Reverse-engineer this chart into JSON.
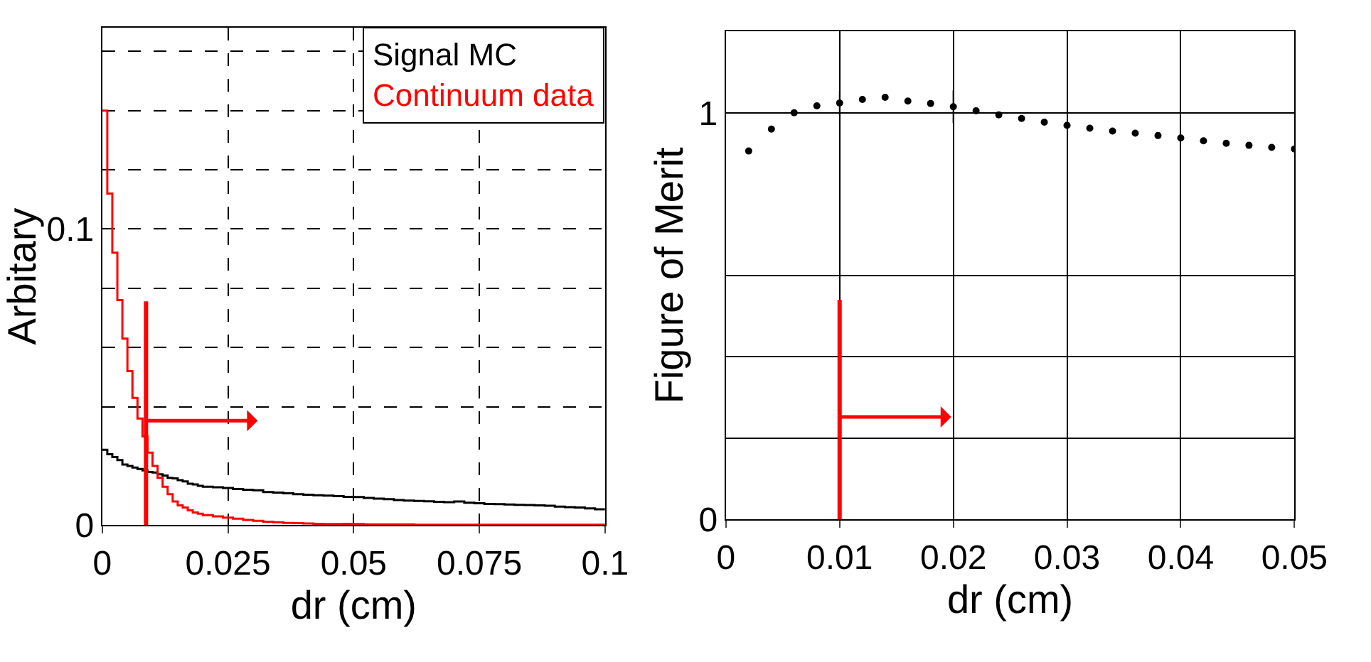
{
  "chart_data": [
    {
      "type": "histogram",
      "xlabel": "dr (cm)",
      "ylabel": "Arbitary",
      "bins": [
        0,
        0.001,
        0.002,
        0.003,
        0.004,
        0.005,
        0.006,
        0.007,
        0.008,
        0.009,
        0.01,
        0.011,
        0.012,
        0.013,
        0.014,
        0.015,
        0.016,
        0.017,
        0.018,
        0.019,
        0.02,
        0.022,
        0.024,
        0.026,
        0.028,
        0.03,
        0.032,
        0.034,
        0.036,
        0.038,
        0.04,
        0.042,
        0.044,
        0.046,
        0.048,
        0.05,
        0.052,
        0.054,
        0.056,
        0.058,
        0.06,
        0.062,
        0.064,
        0.066,
        0.068,
        0.07,
        0.072,
        0.074,
        0.076,
        0.078,
        0.08,
        0.082,
        0.084,
        0.086,
        0.088,
        0.09,
        0.092,
        0.094,
        0.096,
        0.098,
        0.1
      ],
      "series": [
        {
          "name": "Signal MC",
          "color": "#000000",
          "values": [
            0.0255,
            0.024,
            0.023,
            0.022,
            0.0205,
            0.02,
            0.0195,
            0.019,
            0.0185,
            0.018,
            0.0178,
            0.0172,
            0.0168,
            0.016,
            0.0158,
            0.0152,
            0.0148,
            0.014,
            0.0138,
            0.0133,
            0.013,
            0.0128,
            0.0126,
            0.0122,
            0.012,
            0.0118,
            0.0112,
            0.011,
            0.0108,
            0.0105,
            0.0103,
            0.0101,
            0.01,
            0.0098,
            0.0096,
            0.0095,
            0.0092,
            0.009,
            0.0088,
            0.0085,
            0.0083,
            0.0082,
            0.0081,
            0.0079,
            0.0078,
            0.008,
            0.0076,
            0.0074,
            0.0072,
            0.0071,
            0.007,
            0.0069,
            0.0068,
            0.0067,
            0.0066,
            0.0063,
            0.0061,
            0.006,
            0.0057,
            0.0054
          ]
        },
        {
          "name": "Continuum data",
          "color": "#ff0000",
          "values": [
            0.14,
            0.112,
            0.092,
            0.076,
            0.063,
            0.052,
            0.043,
            0.036,
            0.03,
            0.0245,
            0.02,
            0.016,
            0.013,
            0.0105,
            0.008,
            0.0067,
            0.006,
            0.005,
            0.0043,
            0.0039,
            0.0034,
            0.003,
            0.0026,
            0.0022,
            0.0018,
            0.0015,
            0.0012,
            0.001,
            0.0008,
            0.0007,
            0.0006,
            0.0005,
            0.0004,
            0.0004,
            0.0005,
            0.0004,
            0.0003,
            0.0003,
            0.0003,
            0.0003,
            0.0003,
            0.0002,
            0.0002,
            0.0002,
            0.0002,
            0.0002,
            0.0002,
            0.0002,
            0.0002,
            0.0002,
            0.0002,
            0.0002,
            0.0002,
            0.0002,
            0.0002,
            0.0002,
            0.0002,
            0.0002,
            0.0002,
            0.0002
          ]
        }
      ],
      "xlim": [
        0,
        0.1
      ],
      "xticks": [
        0,
        0.025,
        0.05,
        0.075,
        {
          "value": 0.1,
          "label": "0.1"
        }
      ],
      "ylim": [
        0,
        0.168
      ],
      "yticks": [
        0,
        {
          "value": 0.04,
          "label": null
        },
        {
          "value": 0.06,
          "label": null
        },
        {
          "value": 0.08,
          "label": null
        },
        0.1,
        {
          "value": 0.12,
          "label": null
        },
        {
          "value": 0.14,
          "label": null
        },
        {
          "value": 0.16,
          "label": null
        }
      ],
      "grid": true,
      "line_style": "dashed",
      "legend": "top right",
      "ref_lines": [
        {
          "axis": "x",
          "value": 0.0087,
          "color": "#ff0000"
        }
      ]
    },
    {
      "type": "scatter",
      "xlabel": "dr (cm)",
      "ylabel": "Figure of Merit",
      "x": [
        0.002,
        0.004,
        0.006,
        0.008,
        0.01,
        0.012,
        0.014,
        0.016,
        0.018,
        0.02,
        0.022,
        0.024,
        0.026,
        0.028,
        0.03,
        0.032,
        0.034,
        0.036,
        0.038,
        0.04,
        0.042,
        0.044,
        0.046,
        0.048,
        0.05
      ],
      "values": [
        0.906,
        0.96,
        1.0,
        1.017,
        1.024,
        1.033,
        1.038,
        1.029,
        1.023,
        1.015,
        1.005,
        0.995,
        0.986,
        0.977,
        0.969,
        0.962,
        0.955,
        0.95,
        0.944,
        0.938,
        0.931,
        0.925,
        0.92,
        0.915,
        0.911
      ],
      "errors": [
        null,
        null,
        null,
        null,
        0.03,
        null,
        null,
        null,
        null,
        0.04,
        null,
        null,
        null,
        null,
        null,
        null,
        null,
        null,
        null,
        null,
        null,
        null,
        null,
        null,
        null
      ],
      "color": "#000000",
      "marker": "circle",
      "xlim": [
        0,
        0.05
      ],
      "xticks": [
        0,
        0.01,
        0.02,
        0.03,
        0.04,
        0.05
      ],
      "ylim": [
        0,
        1.2
      ],
      "yticks": [
        0,
        {
          "value": 0.2,
          "label": null
        },
        {
          "value": 0.4,
          "label": null
        },
        {
          "value": 0.6,
          "label": null
        },
        1
      ],
      "grid": true,
      "line_style": "solid",
      "ref_lines": [
        {
          "axis": "x",
          "value": 0.01,
          "color": "#ff0000"
        }
      ]
    }
  ]
}
